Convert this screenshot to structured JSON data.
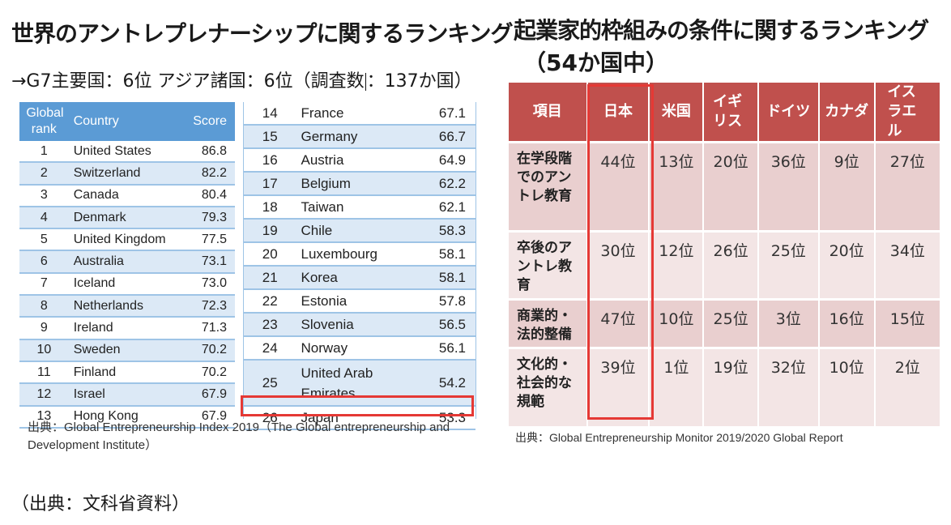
{
  "left": {
    "title": "世界のアントレプレナーシップに関するランキング",
    "subtitle_a": "→G7主要国：6位 アジア諸国：6位（調査数",
    "subtitle_b": "：137か国）",
    "headers": {
      "rank": "Global rank",
      "country": "Country",
      "score": "Score"
    },
    "table1": [
      {
        "rank": "1",
        "country": "United States",
        "score": "86.8"
      },
      {
        "rank": "2",
        "country": "Switzerland",
        "score": "82.2"
      },
      {
        "rank": "3",
        "country": "Canada",
        "score": "80.4"
      },
      {
        "rank": "4",
        "country": "Denmark",
        "score": "79.3"
      },
      {
        "rank": "5",
        "country": "United Kingdom",
        "score": "77.5"
      },
      {
        "rank": "6",
        "country": "Australia",
        "score": "73.1"
      },
      {
        "rank": "7",
        "country": "Iceland",
        "score": "73.0"
      },
      {
        "rank": "8",
        "country": "Netherlands",
        "score": "72.3"
      },
      {
        "rank": "9",
        "country": "Ireland",
        "score": "71.3"
      },
      {
        "rank": "10",
        "country": "Sweden",
        "score": "70.2"
      },
      {
        "rank": "11",
        "country": "Finland",
        "score": "70.2"
      },
      {
        "rank": "12",
        "country": "Israel",
        "score": "67.9"
      },
      {
        "rank": "13",
        "country": "Hong Kong",
        "score": "67.9"
      }
    ],
    "table2": [
      {
        "rank": "14",
        "country": "France",
        "score": "67.1"
      },
      {
        "rank": "15",
        "country": "Germany",
        "score": "66.7"
      },
      {
        "rank": "16",
        "country": "Austria",
        "score": "64.9"
      },
      {
        "rank": "17",
        "country": "Belgium",
        "score": "62.2"
      },
      {
        "rank": "18",
        "country": "Taiwan",
        "score": "62.1"
      },
      {
        "rank": "19",
        "country": "Chile",
        "score": "58.3"
      },
      {
        "rank": "20",
        "country": "Luxembourg",
        "score": "58.1"
      },
      {
        "rank": "21",
        "country": "Korea",
        "score": "58.1"
      },
      {
        "rank": "22",
        "country": "Estonia",
        "score": "57.8"
      },
      {
        "rank": "23",
        "country": "Slovenia",
        "score": "56.5"
      },
      {
        "rank": "24",
        "country": "Norway",
        "score": "56.1"
      },
      {
        "rank": "25",
        "country": "United Arab Emirates",
        "score": "54.2"
      },
      {
        "rank": "26",
        "country": "Japan",
        "score": "53.3"
      }
    ],
    "source": "出典：Global Entrepreneurship Index 2019（The Global entrepreneurship and Development Institute）"
  },
  "right": {
    "title": "起業家的枠組みの条件に関するランキング",
    "title2": "（54か国中）",
    "headers": [
      "項目",
      "日本",
      "米国",
      "イギリス",
      "ドイツ",
      "カナダ",
      "イスラエル"
    ],
    "rows": [
      {
        "label": "在学段階でのアントレ教育",
        "values": [
          "44位",
          "13位",
          "20位",
          "36位",
          "9位",
          "27位"
        ]
      },
      {
        "label": "卒後のアントレ教育",
        "values": [
          "30位",
          "12位",
          "26位",
          "25位",
          "20位",
          "34位"
        ]
      },
      {
        "label": "商業的・法的整備",
        "values": [
          "47位",
          "10位",
          "25位",
          "3位",
          "16位",
          "15位"
        ]
      },
      {
        "label": "文化的・社会的な規範",
        "values": [
          "39位",
          "1位",
          "19位",
          "32位",
          "10位",
          "2位"
        ]
      }
    ],
    "source": "出典：Global Entrepreneurship Monitor 2019/2020 Global Report"
  },
  "footer": "（出典：文科省資料）"
}
